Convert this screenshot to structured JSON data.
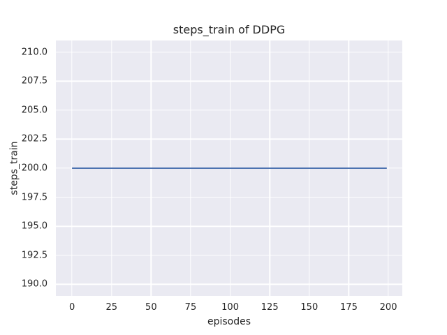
{
  "figure": {
    "background": "#FFFFFF"
  },
  "chart_data": {
    "type": "line",
    "title": "steps_train of DDPG",
    "xlabel": "episodes",
    "ylabel": "steps_train",
    "xlim": [
      -10.2,
      208.8
    ],
    "ylim": [
      189.0,
      211.0
    ],
    "xticks": [
      0,
      25,
      50,
      75,
      100,
      125,
      150,
      175,
      200
    ],
    "xtick_labels": [
      "0",
      "25",
      "50",
      "75",
      "100",
      "125",
      "150",
      "175",
      "200"
    ],
    "yticks": [
      190.0,
      192.5,
      195.0,
      197.5,
      200.0,
      202.5,
      205.0,
      207.5,
      210.0
    ],
    "ytick_labels": [
      "190.0",
      "192.5",
      "195.0",
      "197.5",
      "200.0",
      "202.5",
      "205.0",
      "207.5",
      "210.0"
    ],
    "grid": true,
    "legend": null,
    "plot_background": "#EAEAF2",
    "gridline_color": "#FFFFFF",
    "text_color": "#262626",
    "series": [
      {
        "name": "steps_train",
        "color": "#4C72B0",
        "linewidth": 2,
        "x": [
          0,
          199
        ],
        "y": [
          200,
          200
        ]
      }
    ]
  }
}
